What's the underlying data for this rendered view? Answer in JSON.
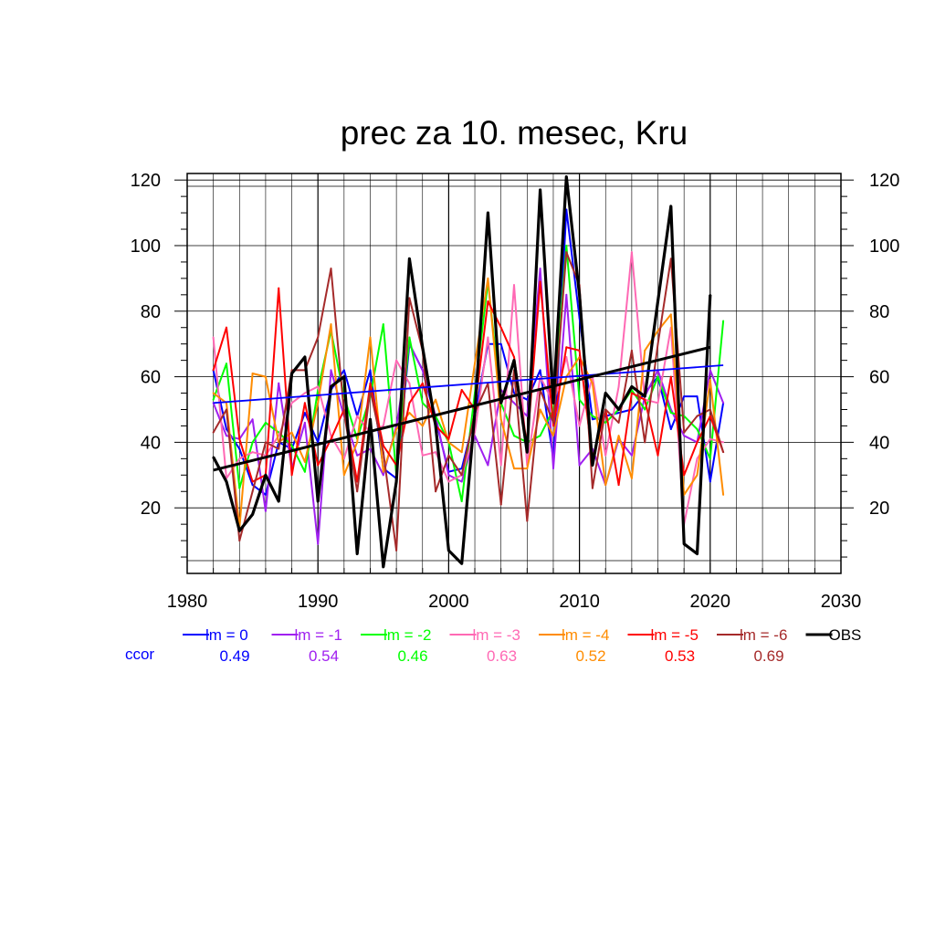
{
  "chart_data": {
    "type": "line",
    "title": "prec za 10. mesec, Kru",
    "xlabel": "",
    "ylabel": "",
    "xlim": [
      1980,
      2030
    ],
    "ylim": [
      0,
      122
    ],
    "grid": true,
    "x_ticks": [
      "1980",
      "1990",
      "2000",
      "2010",
      "2020",
      "2030"
    ],
    "y_ticks": [
      "20",
      "40",
      "60",
      "80",
      "100",
      "120"
    ],
    "x": [
      1982,
      1983,
      1984,
      1985,
      1986,
      1987,
      1988,
      1989,
      1990,
      1991,
      1992,
      1993,
      1994,
      1995,
      1996,
      1997,
      1998,
      1999,
      2000,
      2001,
      2002,
      2003,
      2004,
      2005,
      2006,
      2007,
      2008,
      2009,
      2010,
      2011,
      2012,
      2013,
      2014,
      2015,
      2016,
      2017,
      2018,
      2019,
      2020,
      2021
    ],
    "series": [
      {
        "name": "lm = 0",
        "color": "#0000ff",
        "label": "0.49",
        "values": [
          62,
          44,
          38,
          27,
          24,
          40,
          38,
          49,
          40,
          56,
          62,
          48,
          62,
          32,
          29,
          70,
          62,
          47,
          31,
          32,
          48,
          70,
          70,
          55,
          53,
          62,
          35,
          111,
          78,
          47,
          48,
          49,
          50,
          55,
          60,
          44,
          54,
          54,
          28,
          52
        ]
      },
      {
        "name": "lm = -1",
        "color": "#a020f0",
        "label": "0.54",
        "values": [
          52,
          42,
          41,
          47,
          19,
          58,
          32,
          46,
          9,
          62,
          48,
          36,
          38,
          30,
          45,
          70,
          62,
          48,
          30,
          28,
          42,
          33,
          56,
          52,
          48,
          93,
          32,
          85,
          33,
          38,
          27,
          41,
          36,
          54,
          62,
          50,
          42,
          40,
          62,
          52
        ]
      },
      {
        "name": "lm = -2",
        "color": "#00ff00",
        "label": "0.46",
        "values": [
          53,
          64,
          26,
          40,
          46,
          43,
          39,
          31,
          56,
          74,
          54,
          41,
          54,
          76,
          30,
          72,
          52,
          48,
          40,
          22,
          55,
          89,
          52,
          42,
          40,
          42,
          50,
          100,
          53,
          48,
          46,
          50,
          56,
          50,
          60,
          49,
          48,
          44,
          35,
          77
        ]
      },
      {
        "name": "lm = -3",
        "color": "#ff69b4",
        "label": "0.63",
        "values": [
          72,
          29,
          35,
          37,
          36,
          42,
          52,
          55,
          57,
          42,
          35,
          48,
          43,
          45,
          65,
          58,
          36,
          37,
          28,
          30,
          43,
          72,
          33,
          88,
          33,
          60,
          52,
          66,
          45,
          60,
          36,
          57,
          98,
          53,
          52,
          75,
          15,
          35,
          41,
          40
        ]
      },
      {
        "name": "lm = -4",
        "color": "#ff8c00",
        "label": "0.52",
        "values": [
          55,
          52,
          14,
          61,
          60,
          40,
          43,
          34,
          52,
          76,
          30,
          40,
          72,
          31,
          44,
          49,
          45,
          53,
          40,
          37,
          64,
          90,
          47,
          32,
          32,
          50,
          42,
          60,
          66,
          58,
          27,
          42,
          29,
          68,
          74,
          79,
          24,
          30,
          59,
          24
        ]
      },
      {
        "name": "lm = -5",
        "color": "#ff0000",
        "label": "0.53",
        "values": [
          62,
          75,
          41,
          28,
          30,
          87,
          30,
          52,
          33,
          41,
          50,
          28,
          58,
          39,
          33,
          52,
          58,
          45,
          41,
          56,
          50,
          83,
          75,
          66,
          39,
          89,
          45,
          69,
          68,
          35,
          50,
          27,
          55,
          53,
          36,
          60,
          30,
          40,
          48,
          37
        ]
      },
      {
        "name": "lm = -6",
        "color": "#a52a2a",
        "label": "0.69",
        "values": [
          43,
          50,
          10,
          25,
          40,
          38,
          62,
          62,
          72,
          93,
          49,
          25,
          56,
          37,
          7,
          84,
          68,
          25,
          36,
          30,
          49,
          58,
          21,
          62,
          16,
          56,
          46,
          98,
          88,
          26,
          50,
          46,
          68,
          40,
          70,
          96,
          43,
          48,
          50,
          37
        ]
      },
      {
        "name": "OBS",
        "color": "#000000",
        "label": "",
        "values": [
          35.5,
          28,
          13,
          18,
          30,
          22,
          61,
          66,
          22,
          57,
          60,
          6,
          47,
          2,
          28,
          96,
          69,
          45,
          7,
          3,
          49,
          110,
          52,
          65,
          37,
          117,
          52,
          121,
          85,
          33,
          55,
          50,
          57,
          54,
          83,
          112,
          9,
          6,
          85,
          null
        ]
      }
    ],
    "trend_lines": [
      {
        "series": "lm = 0",
        "color": "#0000ff",
        "x": [
          1982,
          2021
        ],
        "y": [
          52,
          63.5
        ]
      },
      {
        "series": "OBS",
        "color": "#000000",
        "x": [
          1982,
          2020
        ],
        "y": [
          31.5,
          69
        ]
      }
    ],
    "legend": {
      "placement": "bottom",
      "ccor_label": "ccor",
      "ccor_color": "#0000ff"
    }
  }
}
